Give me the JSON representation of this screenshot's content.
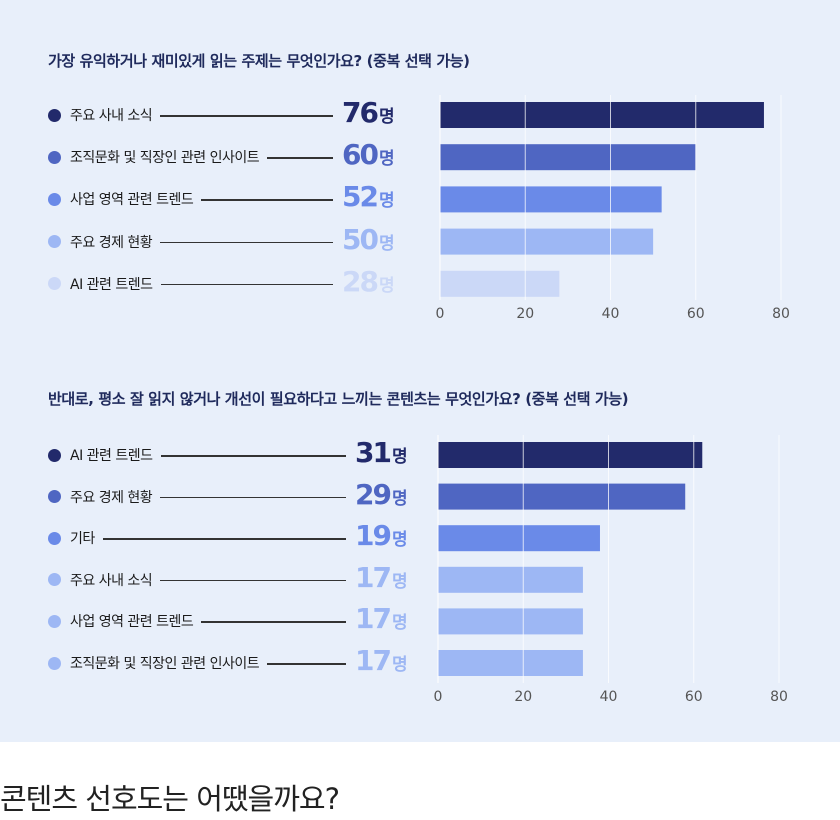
{
  "chart_data": [
    {
      "type": "bar",
      "orientation": "horizontal",
      "title": "가장 유익하거나 재미있게 읽는 주제는 무엇인가요? (중복 선택 가능)",
      "categories": [
        "주요 사내  소식",
        "조직문화 및 직장인 관련 인사이트",
        "사업 영역 관련 트렌드",
        "주요 경제 현황",
        "AI 관련 트렌드"
      ],
      "values": [
        76,
        60,
        52,
        50,
        28
      ],
      "value_labels": [
        "76",
        "60",
        "52",
        "50",
        "28"
      ],
      "unit": "명",
      "colors": [
        "#222a6b",
        "#4f66c2",
        "#6a8ae8",
        "#9db7f4",
        "#cbd8f7"
      ],
      "xlim": [
        0,
        80
      ],
      "xticks": [
        "0",
        "20",
        "40",
        "60",
        "80"
      ],
      "grid": true
    },
    {
      "type": "bar",
      "orientation": "horizontal",
      "title": "반대로, 평소 잘 읽지 않거나 개선이 필요하다고 느끼는 콘텐츠는 무엇인가요? (중복 선택 가능)",
      "categories": [
        "AI 관련 트렌드",
        "주요 경제 현황",
        "기타",
        "주요 사내  소식",
        "사업 영역 관련 트렌드",
        "조직문화 및 직장인 관련 인사이트"
      ],
      "values": [
        31,
        29,
        19,
        17,
        17,
        17
      ],
      "value_labels": [
        "31",
        "29",
        "19",
        "17",
        "17",
        "17"
      ],
      "unit": "명",
      "colors": [
        "#222a6b",
        "#4f66c2",
        "#6a8ae8",
        "#9db7f4",
        "#9db7f4",
        "#9db7f4"
      ],
      "xlim": [
        0,
        80
      ],
      "xticks": [
        "0",
        "20",
        "40",
        "60",
        "80"
      ],
      "grid": true
    }
  ],
  "heading": "콘텐츠 선호도는 어땠을까요?"
}
